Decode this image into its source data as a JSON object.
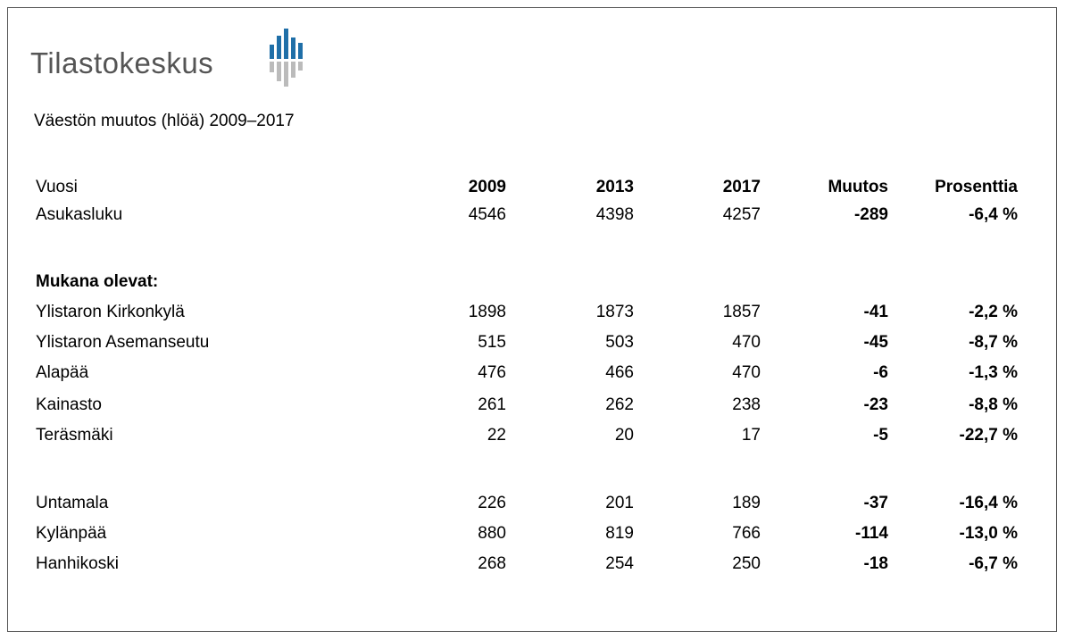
{
  "header": {
    "logo": "Tilastokeskus",
    "title": "Väestön muutos (hlöä) 2009–2017"
  },
  "table": {
    "columns": [
      "Vuosi",
      "2009",
      "2013",
      "2017",
      "Muutos",
      "Prosenttia"
    ],
    "rows": [
      [
        "Asukasluku",
        4546,
        4398,
        4257,
        -289,
        "-6,4 %"
      ],
      [
        "Mukana olevat:"
      ],
      [
        "Ylistaron Kirkonkylä",
        1898,
        1873,
        1857,
        -41,
        "-2,2 %"
      ],
      [
        "Ylistaron Asemanseutu",
        515,
        503,
        470,
        -45,
        "-8,7 %"
      ],
      [
        "Alapää",
        476,
        466,
        470,
        -6,
        "-1,3 %"
      ],
      [
        "Kainasto",
        261,
        262,
        238,
        -23,
        "-8,8 %"
      ],
      [
        "Teräsmäki",
        22,
        20,
        17,
        -5,
        "-22,7 %"
      ],
      [
        "Untamala",
        226,
        201,
        189,
        -37,
        "-16,4 %"
      ],
      [
        "Kylänpää",
        880,
        819,
        766,
        -114,
        "-13,0 %"
      ],
      [
        "Hanhikoski",
        268,
        254,
        250,
        -18,
        "-6,7 %"
      ]
    ]
  }
}
